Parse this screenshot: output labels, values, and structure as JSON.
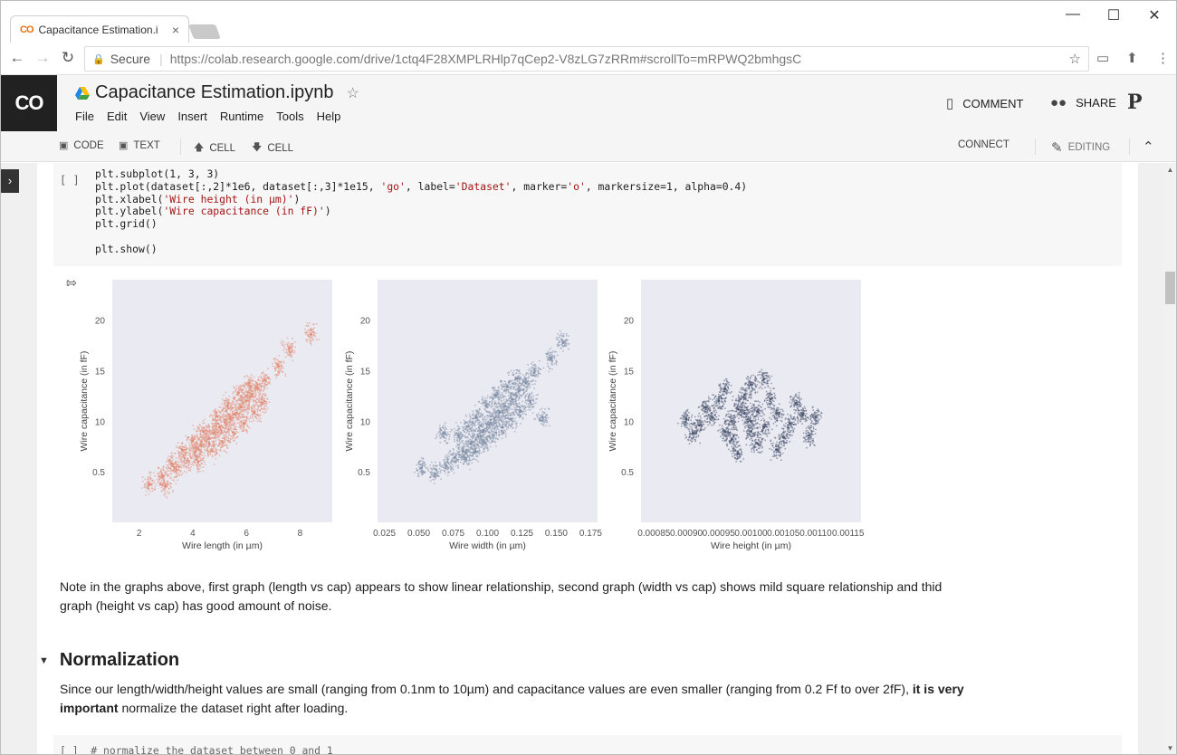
{
  "browser": {
    "tab_title": "Capacitance Estimation.i",
    "tab_close": "×",
    "favicon": "CO",
    "window_controls": {
      "minimize": "—",
      "maximize": "☐",
      "close": "✕"
    },
    "nav": {
      "back": "←",
      "forward": "→",
      "reload": "↻"
    },
    "secure_label": "Secure",
    "url": "https://colab.research.google.com/drive/1ctq4F28XMPLRHlp7qCep2-V8zLG7zRRm#scrollTo=mRPWQ2bmhgsC"
  },
  "colab": {
    "logo": "CO",
    "notebook_title": "Capacitance  Estimation.ipynb",
    "menu": [
      "File",
      "Edit",
      "View",
      "Insert",
      "Runtime",
      "Tools",
      "Help"
    ],
    "comment_label": "COMMENT",
    "share_label": "SHARE",
    "avatar_glyph": "P"
  },
  "toolbar": {
    "code_label": "CODE",
    "text_label": "TEXT",
    "cell_up_label": "CELL",
    "cell_down_label": "CELL",
    "connect_label": "CONNECT",
    "editing_label": "EDITING",
    "collapse_glyph": "⌃"
  },
  "cell1": {
    "run_label": "[ ]",
    "code_lines": [
      "plt.subplot(1, 3, 3)",
      "plt.plot(dataset[:,2]*1e6, dataset[:,3]*1e15, 'go', label='Dataset', marker='o', markersize=1, alpha=0.4)",
      "plt.xlabel('Wire height (in µm)')",
      "plt.ylabel('Wire capacitance (in fF)')",
      "plt.grid()",
      "",
      "plt.show()"
    ]
  },
  "chart_data": [
    {
      "type": "scatter",
      "xlabel": "Wire length (in µm)",
      "ylabel": "Wire capacitance (in fF)",
      "xticks": [
        "2",
        "4",
        "6",
        "8"
      ],
      "yticks": [
        "0.5",
        "10",
        "15",
        "20"
      ],
      "xlim": [
        1,
        9.2
      ],
      "ylim": [
        0,
        24
      ],
      "grid": false,
      "color": "#e2907a",
      "points": [
        [
          2.9,
          4.6
        ],
        [
          3.4,
          5.2
        ],
        [
          3.8,
          6.1
        ],
        [
          4.1,
          7.0
        ],
        [
          4.3,
          7.6
        ],
        [
          4.6,
          8.3
        ],
        [
          4.8,
          8.9
        ],
        [
          5.0,
          9.4
        ],
        [
          5.2,
          9.9
        ],
        [
          5.4,
          10.4
        ],
        [
          5.6,
          10.8
        ],
        [
          5.8,
          11.4
        ],
        [
          6.0,
          12.0
        ],
        [
          6.2,
          12.6
        ],
        [
          6.4,
          13.3
        ],
        [
          6.7,
          14.1
        ],
        [
          3.6,
          7.2
        ],
        [
          4.0,
          8.1
        ],
        [
          4.4,
          9.0
        ],
        [
          4.9,
          10.5
        ],
        [
          5.3,
          11.6
        ],
        [
          5.7,
          12.8
        ],
        [
          6.1,
          13.8
        ],
        [
          4.2,
          6.0
        ],
        [
          4.7,
          7.1
        ],
        [
          5.1,
          8.0
        ],
        [
          5.5,
          8.9
        ],
        [
          5.9,
          9.8
        ],
        [
          6.3,
          10.9
        ],
        [
          6.6,
          11.8
        ],
        [
          3.2,
          5.8
        ],
        [
          3.0,
          3.6
        ],
        [
          7.2,
          15.4
        ],
        [
          2.4,
          3.8
        ],
        [
          7.6,
          17.2
        ],
        [
          8.4,
          18.6
        ]
      ]
    },
    {
      "type": "scatter",
      "xlabel": "Wire width (in µm)",
      "ylabel": "Wire capacitance (in fF)",
      "xticks": [
        "0.025",
        "0.050",
        "0.075",
        "0.100",
        "0.125",
        "0.150",
        "0.175"
      ],
      "yticks": [
        "0.5",
        "10",
        "15",
        "20"
      ],
      "xlim": [
        0.02,
        0.18
      ],
      "ylim": [
        0,
        24
      ],
      "grid": false,
      "color": "#8491a8",
      "points": [
        [
          0.062,
          4.8
        ],
        [
          0.07,
          5.6
        ],
        [
          0.076,
          6.4
        ],
        [
          0.082,
          7.1
        ],
        [
          0.088,
          7.8
        ],
        [
          0.093,
          8.5
        ],
        [
          0.097,
          9.1
        ],
        [
          0.101,
          9.7
        ],
        [
          0.105,
          10.3
        ],
        [
          0.109,
          10.9
        ],
        [
          0.113,
          11.5
        ],
        [
          0.118,
          12.2
        ],
        [
          0.123,
          13.0
        ],
        [
          0.128,
          13.8
        ],
        [
          0.134,
          14.8
        ],
        [
          0.079,
          8.6
        ],
        [
          0.086,
          9.5
        ],
        [
          0.092,
          10.4
        ],
        [
          0.099,
          11.6
        ],
        [
          0.106,
          12.6
        ],
        [
          0.114,
          13.4
        ],
        [
          0.121,
          14.2
        ],
        [
          0.084,
          6.3
        ],
        [
          0.091,
          7.0
        ],
        [
          0.098,
          7.9
        ],
        [
          0.104,
          8.6
        ],
        [
          0.111,
          9.4
        ],
        [
          0.117,
          10.2
        ],
        [
          0.124,
          11.0
        ],
        [
          0.131,
          12.0
        ],
        [
          0.052,
          5.4
        ],
        [
          0.146,
          16.2
        ],
        [
          0.155,
          17.8
        ],
        [
          0.068,
          8.8
        ],
        [
          0.14,
          10.4
        ]
      ]
    },
    {
      "type": "scatter",
      "xlabel": "Wire height (in µm)",
      "ylabel": "Wire capacitance (in fF)",
      "xticks": [
        "0.00085",
        "0.00090",
        "0.00095",
        "0.00100",
        "0.00105",
        "0.00110",
        "0.00115"
      ],
      "yticks": [
        "0.5",
        "10",
        "15",
        "20"
      ],
      "xlim": [
        0.00083,
        0.00117
      ],
      "ylim": [
        0,
        24
      ],
      "grid": false,
      "color": "#4f5a72",
      "points": [
        [
          0.00092,
          9.6
        ],
        [
          0.00094,
          10.4
        ],
        [
          0.00096,
          9.0
        ],
        [
          0.00098,
          11.2
        ],
        [
          0.001,
          10.0
        ],
        [
          0.00102,
          9.4
        ],
        [
          0.00104,
          10.8
        ],
        [
          0.00106,
          9.8
        ],
        [
          0.00108,
          10.6
        ],
        [
          0.00095,
          12.0
        ],
        [
          0.00099,
          12.6
        ],
        [
          0.00103,
          12.2
        ],
        [
          0.00097,
          8.2
        ],
        [
          0.00101,
          7.8
        ],
        [
          0.00105,
          8.4
        ],
        [
          0.00093,
          11.4
        ],
        [
          0.00107,
          11.8
        ],
        [
          0.00091,
          8.8
        ],
        [
          0.00109,
          8.6
        ],
        [
          0.001,
          13.6
        ],
        [
          0.00098,
          6.8
        ],
        [
          0.00102,
          14.2
        ],
        [
          0.0009,
          10.2
        ],
        [
          0.0011,
          10.4
        ],
        [
          0.00096,
          13.2
        ],
        [
          0.00104,
          7.2
        ],
        [
          0.001,
          9.0
        ],
        [
          0.00099,
          10.8
        ],
        [
          0.00101,
          11.0
        ],
        [
          0.00097,
          10.0
        ]
      ]
    }
  ],
  "note_text": "Note in the graphs above, first graph (length vs cap) appears to show linear relationship, second graph (width vs cap) shows mild square relationship and thid graph (height vs cap) has good amount of noise.",
  "section_title": "Normalization",
  "para": {
    "part1": "Since our length/width/height values are small (ranging from 0.1nm to 10µm) and capacitance values are even smaller (ranging from 0.2 Ff to over 2fF), ",
    "bold1": "it is very important",
    "part2": " normalize the dataset right after loading."
  },
  "cell2": {
    "code": "[ ]  # normalize the dataset between 0 and 1"
  }
}
